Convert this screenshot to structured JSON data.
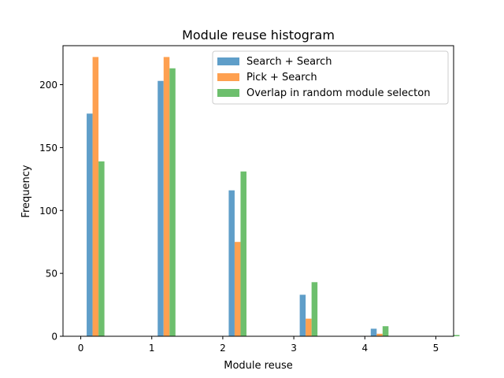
{
  "chart_data": {
    "type": "bar",
    "title": "Module reuse histogram",
    "xlabel": "Module reuse",
    "ylabel": "Frequency",
    "xlim": [
      -0.25,
      5.25
    ],
    "ylim": [
      0,
      231
    ],
    "x_ticks": [
      0,
      1,
      2,
      3,
      4,
      5
    ],
    "y_ticks": [
      0,
      50,
      100,
      150,
      200
    ],
    "grid": false,
    "legend_position": "top-right",
    "categories": [
      0,
      1,
      2,
      3,
      4,
      5
    ],
    "series": [
      {
        "name": "Search + Search",
        "color": "#5f9ec9",
        "values": [
          177,
          203,
          116,
          33,
          6,
          0
        ]
      },
      {
        "name": "Pick + Search",
        "color": "#fea050",
        "values": [
          222,
          222,
          75,
          14,
          2,
          0
        ]
      },
      {
        "name": "Overlap in random module selecton",
        "color": "#6dbf6d",
        "values": [
          139,
          213,
          131,
          43,
          8,
          1
        ]
      }
    ]
  }
}
